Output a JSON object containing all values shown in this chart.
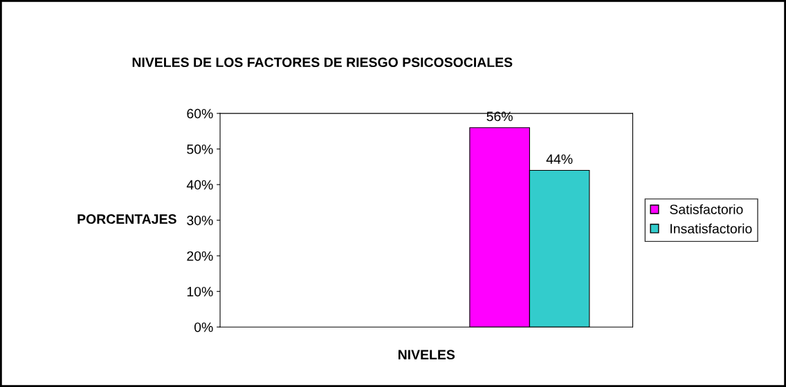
{
  "chart_data": {
    "type": "bar",
    "title": "NIVELES DE LOS FACTORES DE RIESGO PSICOSOCIALES",
    "xlabel": "NIVELES",
    "ylabel": "PORCENTAJES",
    "categories": [
      null,
      null
    ],
    "series": [
      {
        "name": "Satisfactorio",
        "color": "#ff00ff",
        "values": [
          null,
          56
        ],
        "value_labels": [
          null,
          "56%"
        ]
      },
      {
        "name": "Insatisfactorio",
        "color": "#33cccc",
        "values": [
          null,
          44
        ],
        "value_labels": [
          null,
          "44%"
        ]
      }
    ],
    "ylim": [
      0,
      60
    ],
    "yticks": [
      {
        "value": 0,
        "label": "0%"
      },
      {
        "value": 10,
        "label": "10%"
      },
      {
        "value": 20,
        "label": "20%"
      },
      {
        "value": 30,
        "label": "30%"
      },
      {
        "value": 40,
        "label": "40%"
      },
      {
        "value": 50,
        "label": "50%"
      },
      {
        "value": 60,
        "label": "60%"
      }
    ],
    "grid": false,
    "legend": "right"
  }
}
